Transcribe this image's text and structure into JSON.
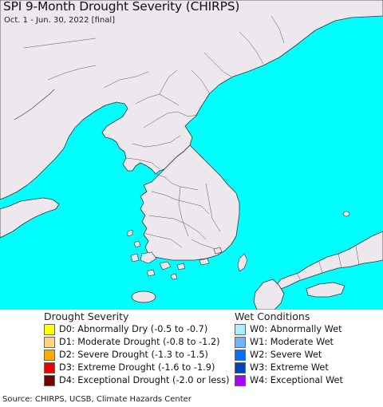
{
  "title": "SPI 9-Month Drought Severity (CHIRPS)",
  "subtitle": "Oct. 1 - Jun. 30, 2022 [final]",
  "colors": {
    "ocean": "#00ffff",
    "land": "#ede8ee",
    "border": "#3a3a3a"
  },
  "legend": {
    "drought_title": "Drought Severity",
    "drought_items": [
      {
        "label": "D0: Abnormally Dry (-0.5 to -0.7)",
        "color": "#ffff00"
      },
      {
        "label": "D1: Moderate Drought (-0.8 to -1.2)",
        "color": "#fcd37f"
      },
      {
        "label": "D2: Severe Drought (-1.3 to -1.5)",
        "color": "#ffaa00"
      },
      {
        "label": "D3: Extreme Drought (-1.6 to -1.9)",
        "color": "#e60000"
      },
      {
        "label": "D4: Exceptional Drought (-2.0 or less)",
        "color": "#730000"
      }
    ],
    "wet_title": "Wet Conditions",
    "wet_items": [
      {
        "label": "W0: Abnormally Wet",
        "color": "#aaeeff"
      },
      {
        "label": "W1: Moderate Wet",
        "color": "#73b2ff"
      },
      {
        "label": "W2: Severe Wet",
        "color": "#0070ff"
      },
      {
        "label": "W3: Extreme Wet",
        "color": "#0044bb"
      },
      {
        "label": "W4: Exceptional Wet",
        "color": "#aa00ff"
      }
    ]
  },
  "source": "Source: CHIRPS, UCSB, Climate Hazards Center"
}
